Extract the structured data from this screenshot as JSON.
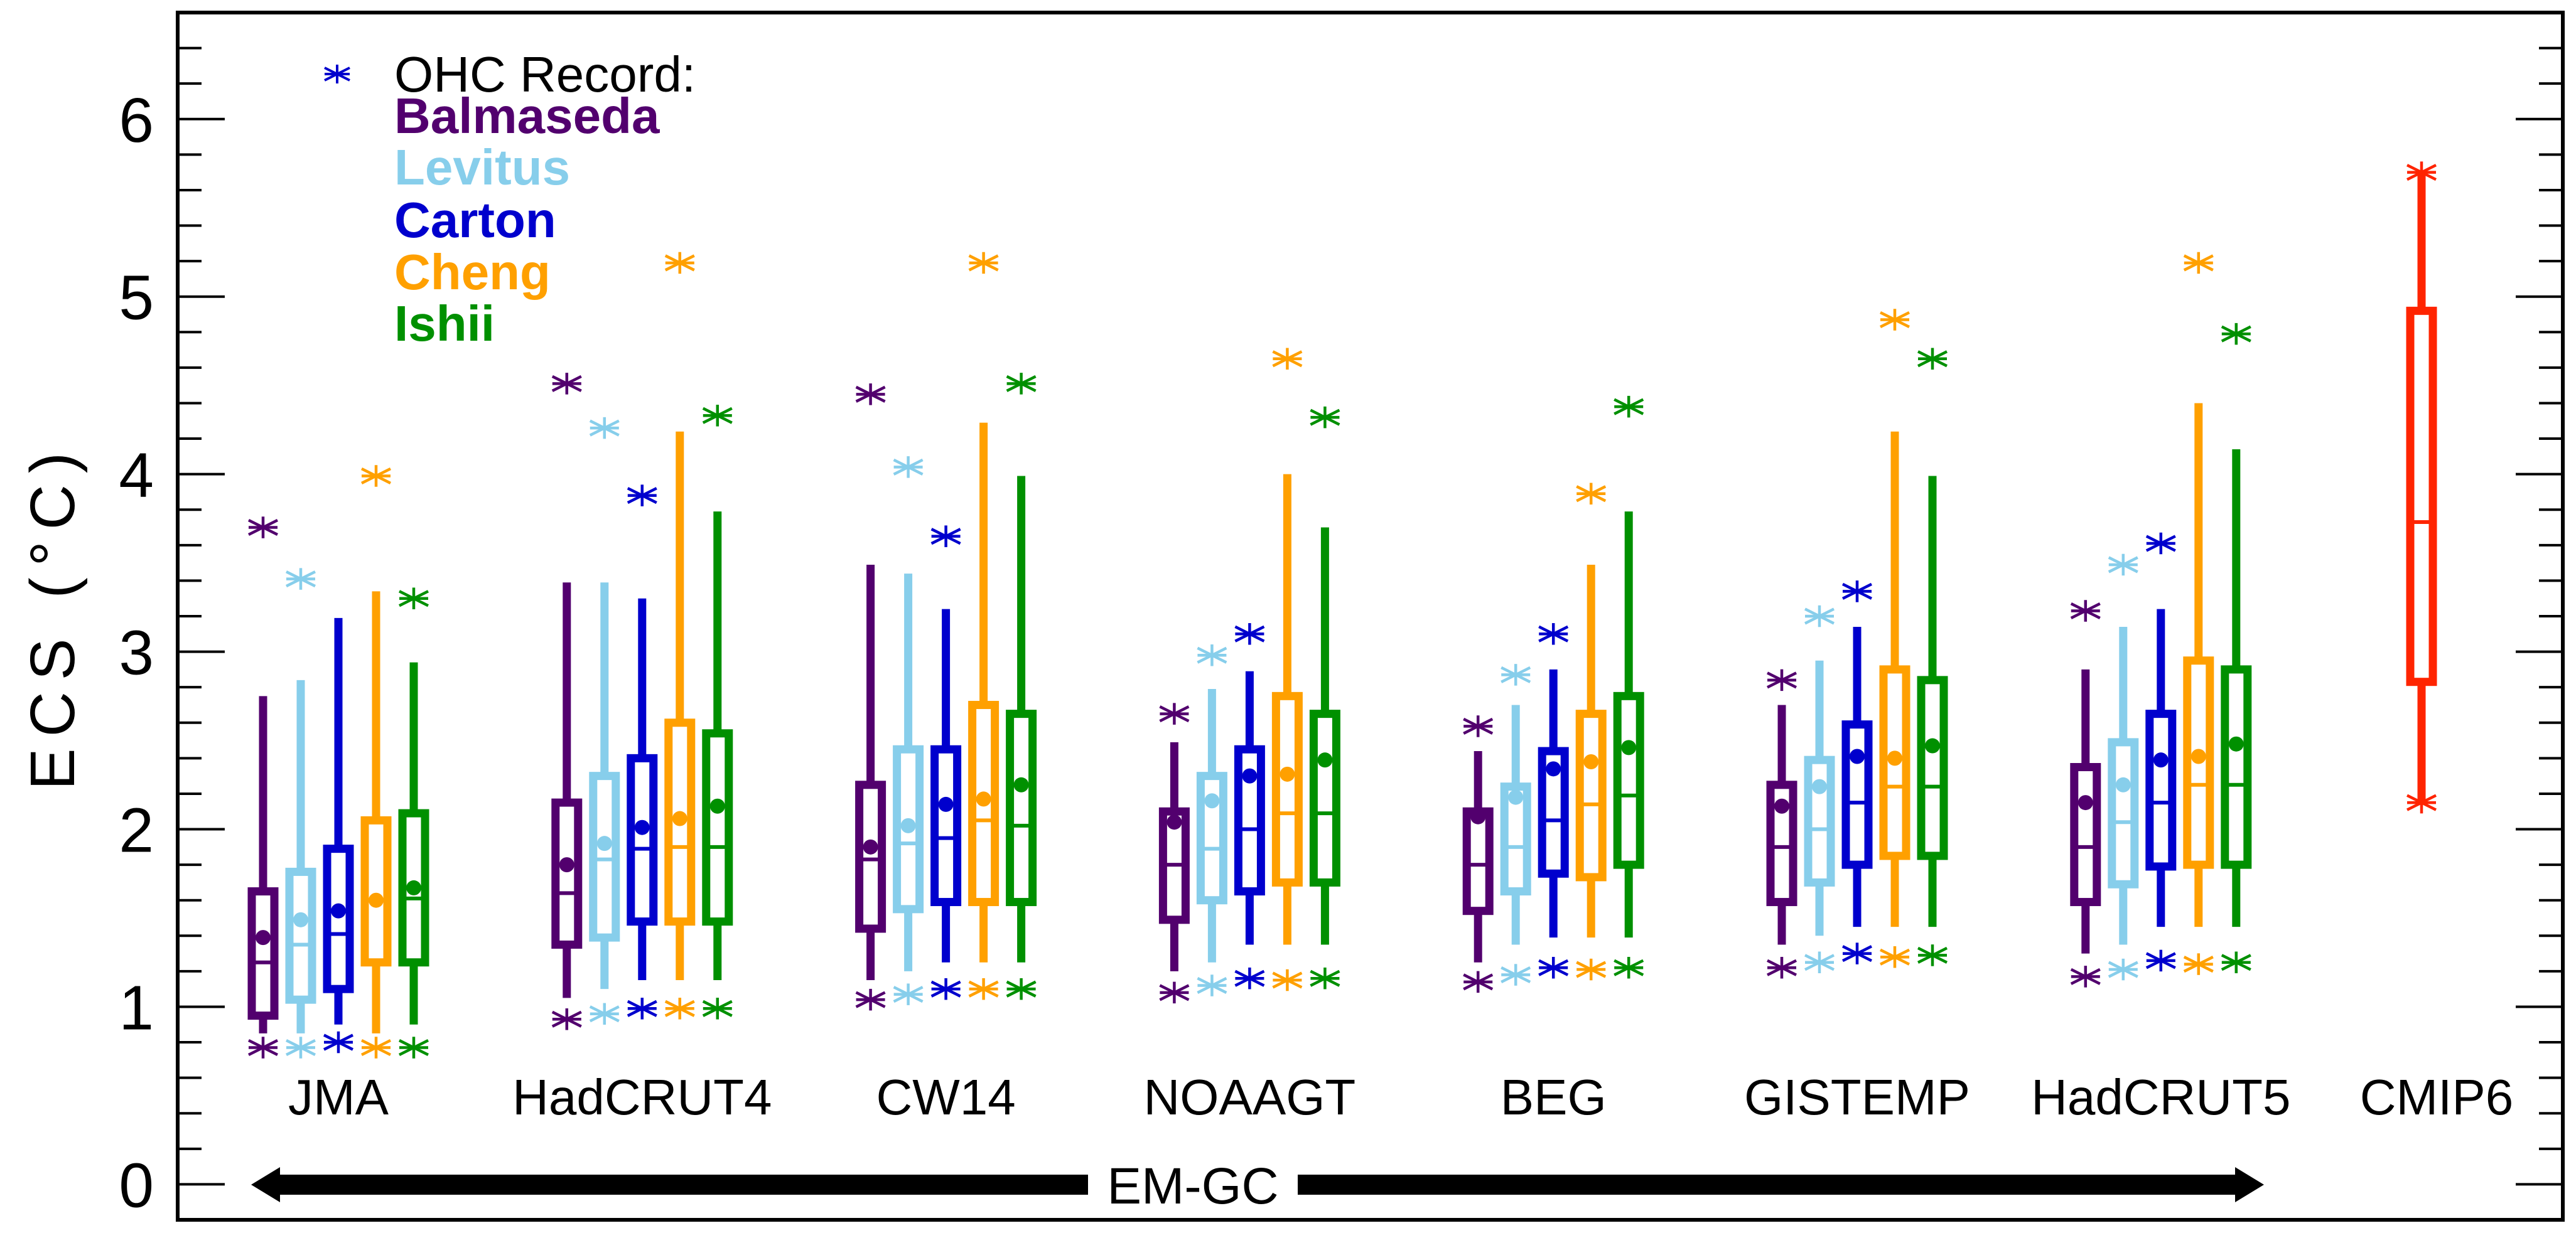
{
  "chart_data": {
    "type": "box",
    "title": "",
    "xlabel": "",
    "ylabel": "ECS (°C)",
    "ylim": [
      -0.2,
      6.6
    ],
    "yticks": [
      0,
      1,
      2,
      3,
      4,
      5,
      6
    ],
    "yminor_step": 0.2,
    "grid": false,
    "legend": {
      "placement": "top-left",
      "title": "OHC Record:",
      "marker": "asterisk",
      "marker_color": "#0000cd",
      "entries": [
        {
          "name": "Balmaseda",
          "color": "#52006e"
        },
        {
          "name": "Levitus",
          "color": "#87ceeb"
        },
        {
          "name": "Carton",
          "color": "#0000cd"
        },
        {
          "name": "Cheng",
          "color": "#ffa000"
        },
        {
          "name": "Ishii",
          "color": "#009000"
        }
      ]
    },
    "bracket_annotation": {
      "label": "EM-GC",
      "spans": [
        "JMA",
        "HadCRUT5"
      ],
      "style": "double-arrow"
    },
    "series_order": [
      "Balmaseda",
      "Levitus",
      "Carton",
      "Cheng",
      "Ishii"
    ],
    "field_legend": {
      "ast_hi": "upper asterisk",
      "whisker_hi": "upper whisker end",
      "box_hi": "box top",
      "mean": "filled dot",
      "median": "line in box",
      "box_lo": "box bottom",
      "whisker_lo": "lower whisker end",
      "ast_lo": "lower asterisk"
    },
    "groups": [
      {
        "name": "JMA",
        "boxes": [
          {
            "series": "Balmaseda",
            "ast_hi": 3.7,
            "whisker_hi": 2.75,
            "box_hi": 1.65,
            "mean": 1.39,
            "median": 1.25,
            "box_lo": 0.95,
            "whisker_lo": 0.85,
            "ast_lo": 0.77
          },
          {
            "series": "Levitus",
            "ast_hi": 3.41,
            "whisker_hi": 2.84,
            "box_hi": 1.76,
            "mean": 1.49,
            "median": 1.35,
            "box_lo": 1.04,
            "whisker_lo": 0.85,
            "ast_lo": 0.77
          },
          {
            "series": "Carton",
            "ast_hi": null,
            "whisker_hi": 3.19,
            "box_hi": 1.89,
            "mean": 1.54,
            "median": 1.41,
            "box_lo": 1.1,
            "whisker_lo": 0.9,
            "ast_lo": 0.8
          },
          {
            "series": "Cheng",
            "ast_hi": 3.99,
            "whisker_hi": 3.34,
            "box_hi": 2.05,
            "mean": 1.6,
            "median": 1.6,
            "box_lo": 1.25,
            "whisker_lo": 0.85,
            "ast_lo": 0.77
          },
          {
            "series": "Ishii",
            "ast_hi": 3.3,
            "whisker_hi": 2.94,
            "box_hi": 2.09,
            "mean": 1.67,
            "median": 1.61,
            "box_lo": 1.25,
            "whisker_lo": 0.9,
            "ast_lo": 0.77
          }
        ]
      },
      {
        "name": "HadCRUT4",
        "boxes": [
          {
            "series": "Balmaseda",
            "ast_hi": 4.51,
            "whisker_hi": 3.39,
            "box_hi": 2.15,
            "mean": 1.8,
            "median": 1.64,
            "box_lo": 1.35,
            "whisker_lo": 1.05,
            "ast_lo": 0.93
          },
          {
            "series": "Levitus",
            "ast_hi": 4.26,
            "whisker_hi": 3.39,
            "box_hi": 2.3,
            "mean": 1.92,
            "median": 1.83,
            "box_lo": 1.39,
            "whisker_lo": 1.1,
            "ast_lo": 0.96
          },
          {
            "series": "Carton",
            "ast_hi": 3.88,
            "whisker_hi": 3.3,
            "box_hi": 2.4,
            "mean": 2.01,
            "median": 1.89,
            "box_lo": 1.48,
            "whisker_lo": 1.15,
            "ast_lo": 0.99
          },
          {
            "series": "Cheng",
            "ast_hi": 5.19,
            "whisker_hi": 4.24,
            "box_hi": 2.6,
            "mean": 2.06,
            "median": 1.9,
            "box_lo": 1.48,
            "whisker_lo": 1.15,
            "ast_lo": 0.99
          },
          {
            "series": "Ishii",
            "ast_hi": 4.33,
            "whisker_hi": 3.79,
            "box_hi": 2.54,
            "mean": 2.13,
            "median": 1.9,
            "box_lo": 1.48,
            "whisker_lo": 1.15,
            "ast_lo": 0.99
          }
        ]
      },
      {
        "name": "CW14",
        "boxes": [
          {
            "series": "Balmaseda",
            "ast_hi": 4.45,
            "whisker_hi": 3.49,
            "box_hi": 2.25,
            "mean": 1.9,
            "median": 1.83,
            "box_lo": 1.44,
            "whisker_lo": 1.15,
            "ast_lo": 1.04
          },
          {
            "series": "Levitus",
            "ast_hi": 4.04,
            "whisker_hi": 3.44,
            "box_hi": 2.45,
            "mean": 2.02,
            "median": 1.92,
            "box_lo": 1.55,
            "whisker_lo": 1.2,
            "ast_lo": 1.07
          },
          {
            "series": "Carton",
            "ast_hi": 3.65,
            "whisker_hi": 3.24,
            "box_hi": 2.45,
            "mean": 2.14,
            "median": 1.95,
            "box_lo": 1.59,
            "whisker_lo": 1.25,
            "ast_lo": 1.1
          },
          {
            "series": "Cheng",
            "ast_hi": 5.19,
            "whisker_hi": 4.29,
            "box_hi": 2.7,
            "mean": 2.17,
            "median": 2.05,
            "box_lo": 1.59,
            "whisker_lo": 1.25,
            "ast_lo": 1.1
          },
          {
            "series": "Ishii",
            "ast_hi": 4.51,
            "whisker_hi": 3.99,
            "box_hi": 2.65,
            "mean": 2.25,
            "median": 2.02,
            "box_lo": 1.59,
            "whisker_lo": 1.25,
            "ast_lo": 1.1
          }
        ]
      },
      {
        "name": "NOAAGT",
        "boxes": [
          {
            "series": "Balmaseda",
            "ast_hi": 2.65,
            "whisker_hi": 2.49,
            "box_hi": 2.1,
            "mean": 2.04,
            "median": 1.8,
            "box_lo": 1.49,
            "whisker_lo": 1.2,
            "ast_lo": 1.08
          },
          {
            "series": "Levitus",
            "ast_hi": 2.98,
            "whisker_hi": 2.79,
            "box_hi": 2.3,
            "mean": 2.16,
            "median": 1.89,
            "box_lo": 1.6,
            "whisker_lo": 1.25,
            "ast_lo": 1.12
          },
          {
            "series": "Carton",
            "ast_hi": 3.1,
            "whisker_hi": 2.89,
            "box_hi": 2.45,
            "mean": 2.3,
            "median": 2.0,
            "box_lo": 1.65,
            "whisker_lo": 1.35,
            "ast_lo": 1.16
          },
          {
            "series": "Cheng",
            "ast_hi": 4.65,
            "whisker_hi": 4.0,
            "box_hi": 2.75,
            "mean": 2.31,
            "median": 2.09,
            "box_lo": 1.7,
            "whisker_lo": 1.35,
            "ast_lo": 1.15
          },
          {
            "series": "Ishii",
            "ast_hi": 4.32,
            "whisker_hi": 3.7,
            "box_hi": 2.65,
            "mean": 2.39,
            "median": 2.09,
            "box_lo": 1.7,
            "whisker_lo": 1.35,
            "ast_lo": 1.16
          }
        ]
      },
      {
        "name": "BEG",
        "boxes": [
          {
            "series": "Balmaseda",
            "ast_hi": 2.58,
            "whisker_hi": 2.44,
            "box_hi": 2.1,
            "mean": 2.07,
            "median": 1.8,
            "box_lo": 1.54,
            "whisker_lo": 1.25,
            "ast_lo": 1.14
          },
          {
            "series": "Levitus",
            "ast_hi": 2.87,
            "whisker_hi": 2.7,
            "box_hi": 2.24,
            "mean": 2.18,
            "median": 1.9,
            "box_lo": 1.65,
            "whisker_lo": 1.35,
            "ast_lo": 1.18
          },
          {
            "series": "Carton",
            "ast_hi": 3.1,
            "whisker_hi": 2.9,
            "box_hi": 2.44,
            "mean": 2.34,
            "median": 2.05,
            "box_lo": 1.75,
            "whisker_lo": 1.39,
            "ast_lo": 1.22
          },
          {
            "series": "Cheng",
            "ast_hi": 3.89,
            "whisker_hi": 3.49,
            "box_hi": 2.65,
            "mean": 2.38,
            "median": 2.14,
            "box_lo": 1.73,
            "whisker_lo": 1.39,
            "ast_lo": 1.21
          },
          {
            "series": "Ishii",
            "ast_hi": 4.38,
            "whisker_hi": 3.79,
            "box_hi": 2.75,
            "mean": 2.46,
            "median": 2.19,
            "box_lo": 1.8,
            "whisker_lo": 1.39,
            "ast_lo": 1.22
          }
        ]
      },
      {
        "name": "GISTEMP",
        "boxes": [
          {
            "series": "Balmaseda",
            "ast_hi": 2.84,
            "whisker_hi": 2.7,
            "box_hi": 2.25,
            "mean": 2.13,
            "median": 1.9,
            "box_lo": 1.59,
            "whisker_lo": 1.35,
            "ast_lo": 1.22
          },
          {
            "series": "Levitus",
            "ast_hi": 3.2,
            "whisker_hi": 2.95,
            "box_hi": 2.39,
            "mean": 2.24,
            "median": 2.0,
            "box_lo": 1.7,
            "whisker_lo": 1.4,
            "ast_lo": 1.25
          },
          {
            "series": "Carton",
            "ast_hi": 3.34,
            "whisker_hi": 3.14,
            "box_hi": 2.59,
            "mean": 2.41,
            "median": 2.15,
            "box_lo": 1.8,
            "whisker_lo": 1.45,
            "ast_lo": 1.3
          },
          {
            "series": "Cheng",
            "ast_hi": 4.87,
            "whisker_hi": 4.24,
            "box_hi": 2.9,
            "mean": 2.4,
            "median": 2.24,
            "box_lo": 1.85,
            "whisker_lo": 1.45,
            "ast_lo": 1.28
          },
          {
            "series": "Ishii",
            "ast_hi": 4.65,
            "whisker_hi": 3.99,
            "box_hi": 2.84,
            "mean": 2.47,
            "median": 2.24,
            "box_lo": 1.85,
            "whisker_lo": 1.45,
            "ast_lo": 1.29
          }
        ]
      },
      {
        "name": "HadCRUT5",
        "boxes": [
          {
            "series": "Balmaseda",
            "ast_hi": 3.23,
            "whisker_hi": 2.9,
            "box_hi": 2.35,
            "mean": 2.15,
            "median": 1.9,
            "box_lo": 1.59,
            "whisker_lo": 1.3,
            "ast_lo": 1.17
          },
          {
            "series": "Levitus",
            "ast_hi": 3.49,
            "whisker_hi": 3.14,
            "box_hi": 2.49,
            "mean": 2.25,
            "median": 2.04,
            "box_lo": 1.69,
            "whisker_lo": 1.35,
            "ast_lo": 1.21
          },
          {
            "series": "Carton",
            "ast_hi": 3.61,
            "whisker_hi": 3.24,
            "box_hi": 2.65,
            "mean": 2.39,
            "median": 2.15,
            "box_lo": 1.79,
            "whisker_lo": 1.45,
            "ast_lo": 1.26
          },
          {
            "series": "Cheng",
            "ast_hi": 5.19,
            "whisker_hi": 4.4,
            "box_hi": 2.95,
            "mean": 2.41,
            "median": 2.25,
            "box_lo": 1.8,
            "whisker_lo": 1.45,
            "ast_lo": 1.24
          },
          {
            "series": "Ishii",
            "ast_hi": 4.79,
            "whisker_hi": 4.14,
            "box_hi": 2.9,
            "mean": 2.48,
            "median": 2.25,
            "box_lo": 1.8,
            "whisker_lo": 1.45,
            "ast_lo": 1.25
          }
        ]
      }
    ],
    "reference": {
      "name": "CMIP6",
      "color": "#ff2400",
      "ast_hi": 5.7,
      "whisker_hi": 5.7,
      "box_hi": 4.92,
      "median": 3.73,
      "box_lo": 2.83,
      "whisker_lo": 2.15,
      "ast_lo": 2.15
    },
    "colors": {
      "Balmaseda": "#52006e",
      "Levitus": "#87ceeb",
      "Carton": "#0000cd",
      "Cheng": "#ffa000",
      "Ishii": "#009000"
    }
  }
}
